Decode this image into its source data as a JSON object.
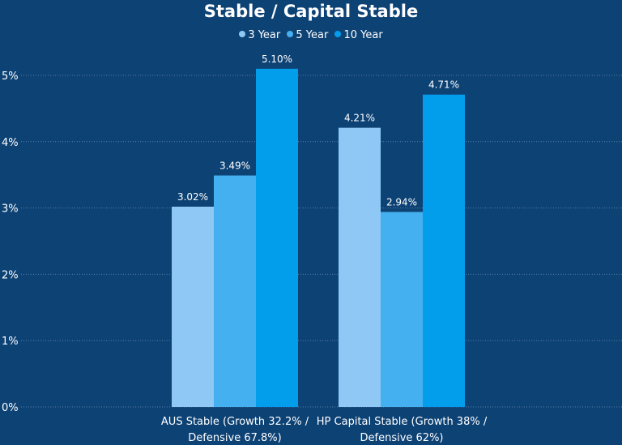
{
  "chart_data": {
    "type": "bar",
    "title": "Stable / Capital Stable",
    "categories": [
      "AUS Stable (Growth 32.2% / Defensive 67.8%)",
      "HP Capital Stable (Growth 38% / Defensive 62%)"
    ],
    "category_lines": [
      [
        "AUS Stable (Growth 32.2% /",
        "Defensive 67.8%)"
      ],
      [
        "HP Capital Stable (Growth 38% /",
        "Defensive 62%)"
      ]
    ],
    "series": [
      {
        "name": "3 Year",
        "values": [
          3.02,
          4.21
        ],
        "labels": [
          "3.02%",
          "4.21%"
        ],
        "color": "#8fc8f4"
      },
      {
        "name": "5 Year",
        "values": [
          3.49,
          2.94
        ],
        "labels": [
          "3.49%",
          "2.94%"
        ],
        "color": "#45b0ef"
      },
      {
        "name": "10 Year",
        "values": [
          5.1,
          4.71
        ],
        "labels": [
          "5.10%",
          "4.71%"
        ],
        "color": "#029deb"
      }
    ],
    "yticks": [
      "0%",
      "1%",
      "2%",
      "3%",
      "4%",
      "5%"
    ],
    "ylim": [
      0,
      5.5
    ],
    "grid": true,
    "legend_position": "top-center",
    "xlabel": "",
    "ylabel": ""
  }
}
